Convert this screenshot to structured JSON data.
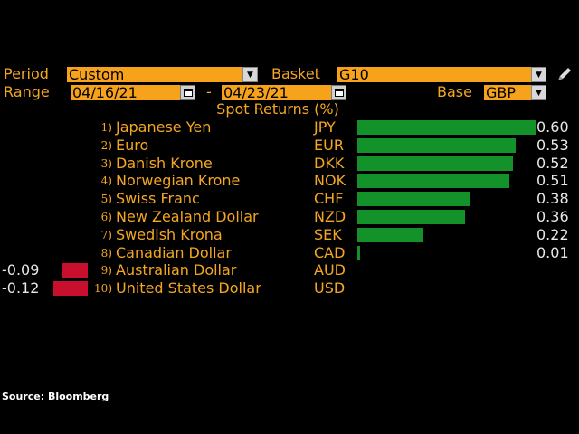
{
  "header": {
    "period_label": "Period",
    "period_value": "Custom",
    "basket_label": "Basket",
    "basket_value": "G10",
    "range_label": "Range",
    "range_start": "04/16/21",
    "range_dash": "-",
    "range_end": "04/23/21",
    "base_label": "Base",
    "base_value": "GBP"
  },
  "chart_title": "Spot Returns (%)",
  "rows": [
    {
      "num": "1)",
      "name": "Japanese Yen",
      "code": "JPY",
      "value": "0.60"
    },
    {
      "num": "2)",
      "name": "Euro",
      "code": "EUR",
      "value": "0.53"
    },
    {
      "num": "3)",
      "name": "Danish Krone",
      "code": "DKK",
      "value": "0.52"
    },
    {
      "num": "4)",
      "name": "Norwegian Krone",
      "code": "NOK",
      "value": "0.51"
    },
    {
      "num": "5)",
      "name": "Swiss Franc",
      "code": "CHF",
      "value": "0.38"
    },
    {
      "num": "6)",
      "name": "New Zealand Dollar",
      "code": "NZD",
      "value": "0.36"
    },
    {
      "num": "7)",
      "name": "Swedish Krona",
      "code": "SEK",
      "value": "0.22"
    },
    {
      "num": "8)",
      "name": "Canadian Dollar",
      "code": "CAD",
      "value": "0.01"
    },
    {
      "num": "9)",
      "name": "Australian Dollar",
      "code": "AUD",
      "value": "-0.09"
    },
    {
      "num": "10)",
      "name": "United States Dollar",
      "code": "USD",
      "value": "-0.12"
    }
  ],
  "chart_data": {
    "type": "bar",
    "orientation": "horizontal",
    "title": "Spot Returns (%)",
    "categories": [
      "JPY",
      "EUR",
      "DKK",
      "NOK",
      "CHF",
      "NZD",
      "SEK",
      "CAD",
      "AUD",
      "USD"
    ],
    "values": [
      0.6,
      0.53,
      0.52,
      0.51,
      0.38,
      0.36,
      0.22,
      0.01,
      -0.09,
      -0.12
    ],
    "colors": {
      "positive": "#14922a",
      "negative": "#c8102e"
    }
  },
  "source": "Source: Bloomberg",
  "colors": {
    "accent": "#f5a623",
    "field_bg": "#f7a21b",
    "positive": "#14922a",
    "negative": "#c8102e"
  }
}
